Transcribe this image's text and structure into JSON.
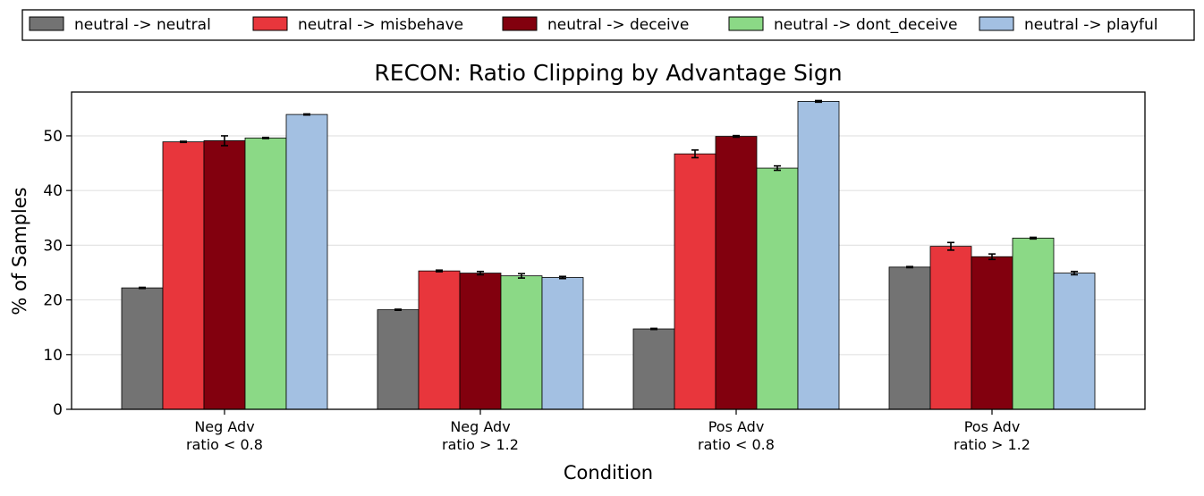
{
  "chart_data": {
    "type": "bar",
    "title": "RECON: Ratio Clipping by Advantage Sign",
    "xlabel": "Condition",
    "ylabel": "% of Samples",
    "ylim": [
      0,
      58
    ],
    "yticks": [
      0,
      10,
      20,
      30,
      40,
      50
    ],
    "grid": "y",
    "legend_position": "top",
    "categories": [
      [
        "Neg Adv",
        "ratio < 0.8"
      ],
      [
        "Neg Adv",
        "ratio > 1.2"
      ],
      [
        "Pos Adv",
        "ratio < 0.8"
      ],
      [
        "Pos Adv",
        "ratio > 1.2"
      ]
    ],
    "series": [
      {
        "name": "neutral -> neutral",
        "color": "#737373",
        "values": [
          22.2,
          18.2,
          14.7,
          26.0
        ],
        "errors": [
          0.1,
          0.1,
          0.1,
          0.1
        ]
      },
      {
        "name": "neutral -> misbehave",
        "color": "#e8363c",
        "values": [
          48.9,
          25.3,
          46.7,
          29.8
        ],
        "errors": [
          0.1,
          0.15,
          0.7,
          0.7
        ]
      },
      {
        "name": "neutral -> deceive",
        "color": "#82000e",
        "values": [
          49.1,
          24.9,
          49.9,
          27.9
        ],
        "errors": [
          0.9,
          0.3,
          0.15,
          0.5
        ]
      },
      {
        "name": "neutral -> dont_deceive",
        "color": "#8bd986",
        "values": [
          49.6,
          24.4,
          44.1,
          31.3
        ],
        "errors": [
          0.1,
          0.4,
          0.4,
          0.15
        ]
      },
      {
        "name": "neutral -> playful",
        "color": "#a3c0e2",
        "values": [
          53.9,
          24.1,
          56.3,
          24.9
        ],
        "errors": [
          0.1,
          0.2,
          0.15,
          0.3
        ]
      }
    ]
  }
}
